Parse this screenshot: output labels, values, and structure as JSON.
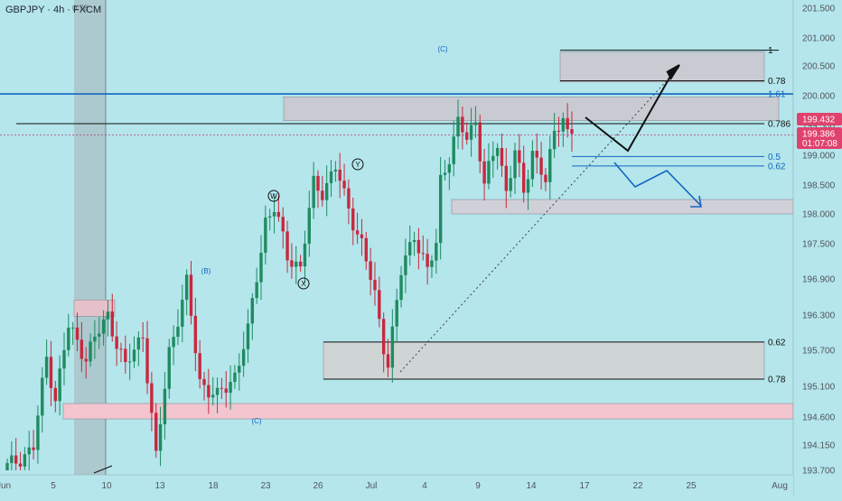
{
  "header": {
    "title": "GBPJPY · 4h · FXCM"
  },
  "colors": {
    "background": "#b4e6ec",
    "bull": "#1f8b60",
    "bear": "#c8283e",
    "blue": "#1565c0",
    "price_tag": "#e0426d"
  },
  "chart_data": {
    "type": "candlestick",
    "title": "GBPJPY · 4h · FXCM",
    "ylim": [
      193.7,
      201.5
    ],
    "y_ticks": [
      "201.500",
      "201.000",
      "200.500",
      "200.000",
      "199.500",
      "199.000",
      "198.500",
      "198.000",
      "197.500",
      "196.900",
      "196.300",
      "195.700",
      "195.100",
      "194.600",
      "194.150",
      "193.700"
    ],
    "x_ticks": [
      "Jun",
      "5",
      "10",
      "13",
      "18",
      "23",
      "26",
      "Jul",
      "4",
      "9",
      "14",
      "17",
      "22",
      "25",
      "Aug"
    ],
    "price_path": [
      [
        0,
        193.7
      ],
      [
        7,
        194.1
      ],
      [
        10,
        195.6
      ],
      [
        12,
        194.9
      ],
      [
        15,
        196.1
      ],
      [
        19,
        195.6
      ],
      [
        24,
        196.3
      ],
      [
        28,
        195.4
      ],
      [
        32,
        196.0
      ],
      [
        35,
        193.9
      ],
      [
        38,
        195.7
      ],
      [
        42,
        196.8
      ],
      [
        45,
        195.2
      ],
      [
        49,
        194.9
      ],
      [
        53,
        195.3
      ],
      [
        56,
        196.0
      ],
      [
        60,
        197.9
      ],
      [
        62,
        198.1
      ],
      [
        65,
        197.3
      ],
      [
        68,
        197.1
      ],
      [
        71,
        198.5
      ],
      [
        73,
        198.4
      ],
      [
        76,
        198.8
      ],
      [
        78,
        198.3
      ],
      [
        82,
        197.5
      ],
      [
        85,
        196.6
      ],
      [
        87,
        195.8
      ],
      [
        88,
        195.5
      ],
      [
        91,
        197.0
      ],
      [
        94,
        197.7
      ],
      [
        97,
        197.0
      ],
      [
        99,
        197.5
      ],
      [
        100,
        198.6
      ],
      [
        102,
        199.0
      ],
      [
        104,
        199.5
      ],
      [
        106,
        199.3
      ],
      [
        108,
        199.6
      ],
      [
        110,
        198.5
      ],
      [
        113,
        199.2
      ],
      [
        115,
        198.4
      ],
      [
        117,
        199.1
      ],
      [
        119,
        198.3
      ],
      [
        121,
        199.1
      ],
      [
        124,
        198.6
      ],
      [
        126,
        199.3
      ],
      [
        128,
        199.7
      ],
      [
        129,
        199.4
      ]
    ],
    "candles_count": 130,
    "current_price": "199.432",
    "price_label_2": "199.386",
    "countdown": "01:07:08",
    "levels": [
      {
        "label": "1",
        "price": 200.78,
        "color": "#111111"
      },
      {
        "label": "0.78",
        "price": 200.25,
        "color": "#111111"
      },
      {
        "label": "1.61",
        "price": 200.03,
        "color": "#1565c0"
      },
      {
        "label": "0.786",
        "price": 199.53,
        "color": "#111111"
      },
      {
        "label": "0.5",
        "price": 198.98,
        "color": "#1565c0"
      },
      {
        "label": "0.62",
        "price": 198.82,
        "color": "#1565c0"
      },
      {
        "label": "0.62",
        "price": 195.84,
        "color": "#111111"
      },
      {
        "label": "0.78",
        "price": 195.22,
        "color": "#111111"
      }
    ],
    "zones": [
      {
        "from_price": 200.75,
        "to_price": 200.23,
        "color": "#c8cbd2",
        "label": "target-zone"
      },
      {
        "from_price": 199.98,
        "to_price": 199.58,
        "color": "#c8cbd2",
        "label": "resistance-zone"
      },
      {
        "from_price": 198.25,
        "to_price": 198.0,
        "color": "#cfd0d8",
        "label": "support-zone"
      },
      {
        "from_price": 195.84,
        "to_price": 195.22,
        "color": "#cfd4d5",
        "label": "lower-support-zone"
      },
      {
        "from_price": 196.55,
        "to_price": 196.28,
        "color": "#e7c1c9",
        "label": "left-zone"
      },
      {
        "from_price": 194.82,
        "to_price": 194.57,
        "color": "#f2c5cf",
        "label": "bottom-zone"
      }
    ],
    "wave_labels": [
      {
        "text": "(C)",
        "color": "#1565c0"
      },
      {
        "text": "(B)",
        "color": "#1565c0"
      },
      {
        "text": "(C)",
        "color": "#1565c0"
      },
      {
        "text": "W",
        "color": "#111111"
      },
      {
        "text": "X",
        "color": "#111111"
      },
      {
        "text": "Y",
        "color": "#111111"
      }
    ],
    "top_marker": "0.78"
  }
}
